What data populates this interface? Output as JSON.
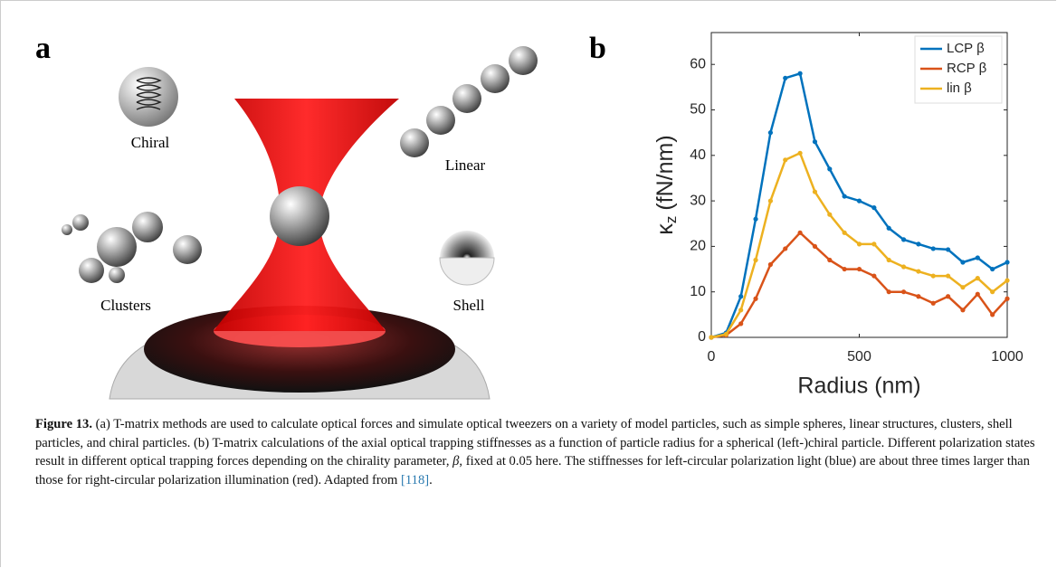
{
  "panel_a": {
    "label": "a",
    "labels": [
      "Chiral",
      "Linear",
      "Clusters",
      "Shell"
    ]
  },
  "chart_data": {
    "type": "line",
    "panel_label": "b",
    "x_label": "Radius (nm)",
    "y_label_symbol": "κ",
    "y_label_subscript": "z",
    "y_label_unit": "(fN/nm)",
    "x": [
      0,
      50,
      100,
      150,
      200,
      250,
      300,
      350,
      400,
      450,
      500,
      550,
      600,
      650,
      700,
      750,
      800,
      850,
      900,
      950,
      1000
    ],
    "series": [
      {
        "name": "LCP β",
        "color": "#0072bd",
        "values": [
          0,
          1,
          9,
          26,
          45,
          57,
          58,
          43,
          37,
          31,
          30,
          28.5,
          24,
          21.5,
          20.5,
          19.5,
          19.3,
          16.5,
          17.5,
          15,
          16.5
        ]
      },
      {
        "name": "RCP β",
        "color": "#d95319",
        "values": [
          0,
          0.5,
          3,
          8.5,
          16,
          19.5,
          23,
          20,
          17,
          15,
          15,
          13.5,
          10,
          10,
          9,
          7.5,
          9,
          6,
          9.5,
          5,
          8.5
        ]
      },
      {
        "name": "lin β",
        "color": "#edb120",
        "values": [
          0,
          0.7,
          6,
          17,
          30,
          39,
          40.5,
          32,
          27,
          23,
          20.5,
          20.5,
          17,
          15.5,
          14.5,
          13.5,
          13.5,
          11,
          13,
          10,
          12.5
        ]
      }
    ],
    "xlim": [
      0,
      1000
    ],
    "xticks": [
      0,
      500,
      1000
    ],
    "ylim": [
      0,
      67
    ],
    "yticks": [
      0,
      10,
      20,
      30,
      40,
      50,
      60
    ],
    "legend": "top-right"
  },
  "caption": {
    "label": "Figure 13.",
    "text1": "(a) T-matrix methods are used to calculate optical forces and simulate optical tweezers on a variety of model particles, such as simple spheres, linear structures, clusters, shell particles, and chiral particles. (b) T-matrix calculations of the axial optical trapping stiffnesses as a function of particle radius for a spherical (left-)chiral particle. Different polarization states result in different optical trapping forces depending on the chirality parameter, ",
    "symbol": "β",
    "text2": ", fixed at 0.05 here. The stiffnesses for left-circular polarization light (blue) are about three times larger than those for right-circular polarization illumination (red). Adapted from ",
    "ref": "[118]",
    "text3": "."
  }
}
